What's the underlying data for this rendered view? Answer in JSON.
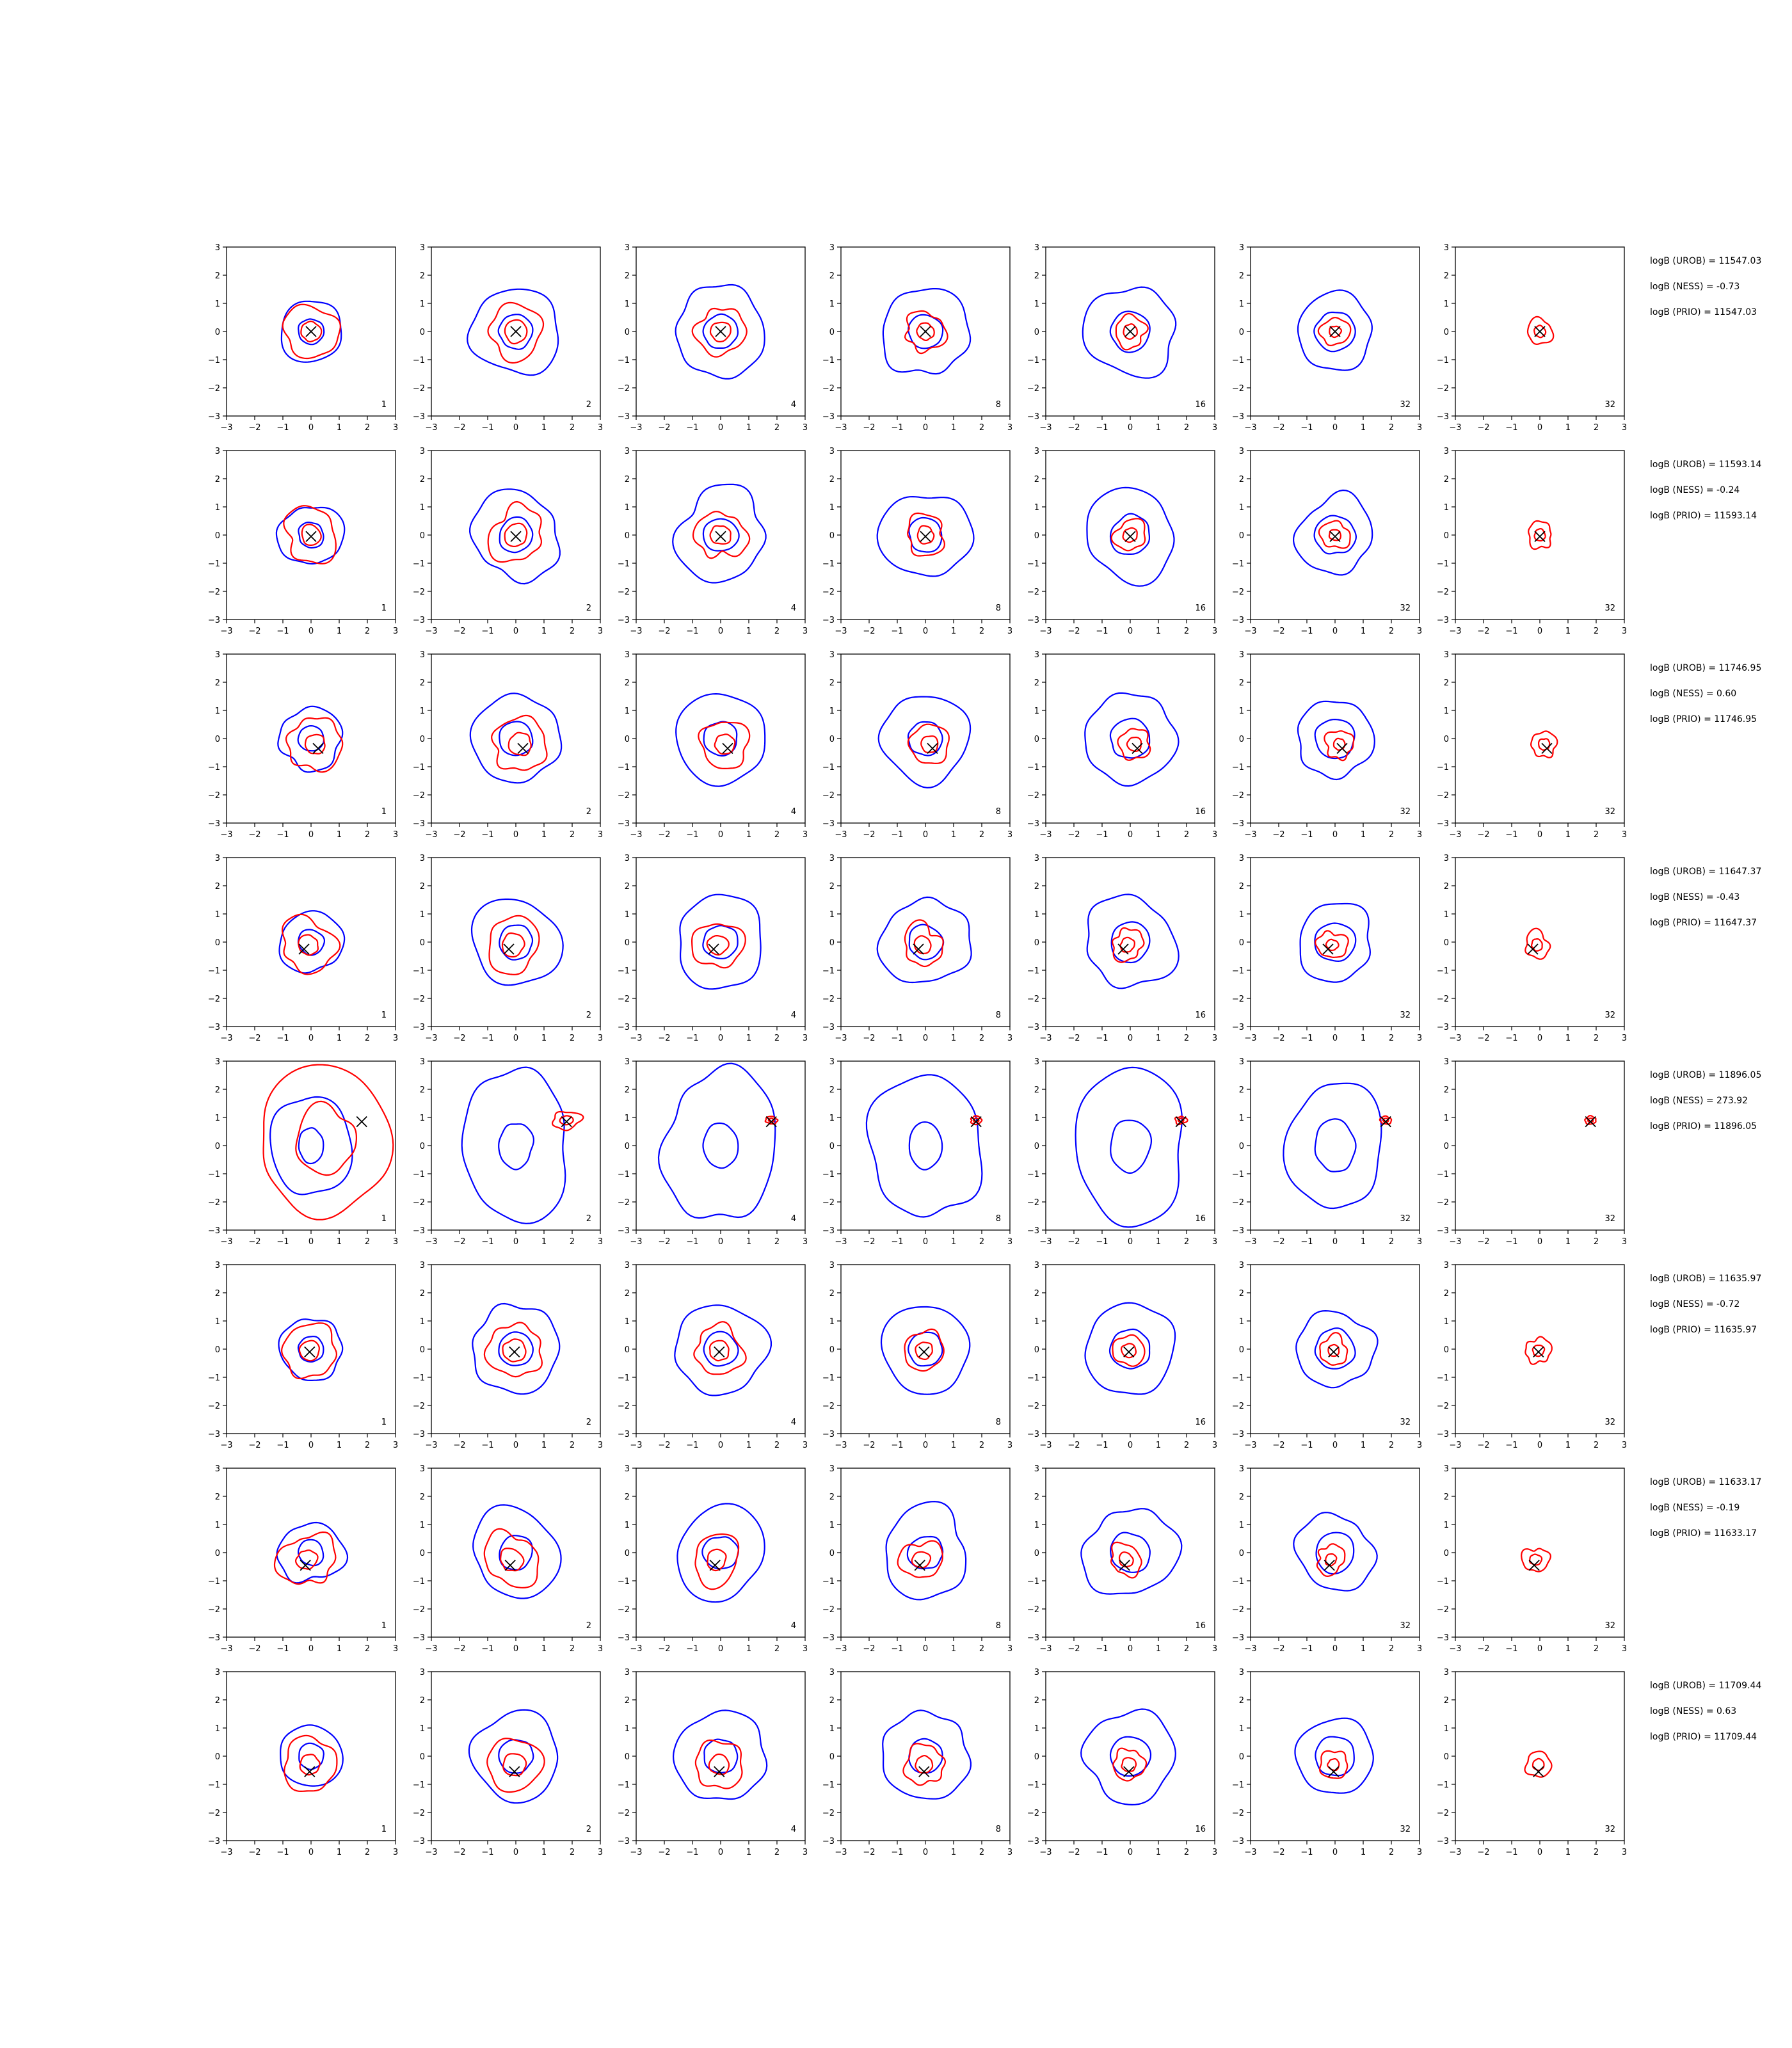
{
  "chart_data": {
    "type": "contour-grid",
    "rows": 8,
    "columns": 7,
    "xlim": [
      -3,
      3
    ],
    "ylim": [
      -3,
      3
    ],
    "xticks": [
      "−3",
      "−2",
      "−1",
      "0",
      "1",
      "2",
      "3"
    ],
    "yticks": [
      "3",
      "2",
      "1",
      "0",
      "−1",
      "−2",
      "−3"
    ],
    "panel_labels": [
      "1",
      "2",
      "4",
      "8",
      "16",
      "32",
      "32"
    ],
    "colors": {
      "blue_contour": "#0000ff",
      "red_contour": "#ff0000",
      "marker": "#000000"
    },
    "blue_levels": [
      [
        0.45,
        1.1
      ],
      [
        0.6,
        1.55
      ],
      [
        0.6,
        1.6
      ],
      [
        0.6,
        1.55
      ],
      [
        0.7,
        1.6
      ],
      [
        0.7,
        1.35
      ],
      null
    ],
    "red_levels": [
      [
        0.35,
        0.95
      ],
      [
        0.4,
        0.95
      ],
      [
        0.35,
        0.85
      ],
      [
        0.3,
        0.7
      ],
      [
        0.25,
        0.55
      ],
      [
        0.2,
        0.5
      ],
      [
        0.2,
        0.45
      ]
    ],
    "row_markers": [
      [
        0.0,
        0.0
      ],
      [
        0.0,
        -0.05
      ],
      [
        0.25,
        -0.35
      ],
      [
        -0.25,
        -0.25
      ],
      [
        1.8,
        0.85
      ],
      [
        -0.05,
        -0.1
      ],
      [
        -0.2,
        -0.45
      ],
      [
        -0.05,
        -0.55
      ]
    ],
    "row_red_center_shift": [
      [
        0.0,
        0.0
      ],
      [
        0.0,
        0.0
      ],
      [
        0.15,
        -0.2
      ],
      [
        -0.1,
        -0.1
      ],
      [
        1.8,
        0.9
      ],
      [
        -0.05,
        -0.05
      ],
      [
        -0.15,
        -0.25
      ],
      [
        -0.05,
        -0.3
      ]
    ],
    "row_notes": [
      [
        "logB (UROB) = 11547.03",
        "logB (NESS) = -0.73",
        "logB (PRIO) = 11547.03"
      ],
      [
        "logB (UROB) = 11593.14",
        "logB (NESS) = -0.24",
        "logB (PRIO) = 11593.14"
      ],
      [
        "logB (UROB) = 11746.95",
        "logB (NESS) = 0.60",
        "logB (PRIO) = 11746.95"
      ],
      [
        "logB (UROB) = 11647.37",
        "logB (NESS) = -0.43",
        "logB (PRIO) = 11647.37"
      ],
      [
        "logB (UROB) = 11896.05",
        "logB (NESS) = 273.92",
        "logB (PRIO) = 11896.05"
      ],
      [
        "logB (UROB) = 11635.97",
        "logB (NESS) = -0.72",
        "logB (PRIO) = 11635.97"
      ],
      [
        "logB (UROB) = 11633.17",
        "logB (NESS) = -0.19",
        "logB (PRIO) = 11633.17"
      ],
      [
        "logB (UROB) = 11709.44",
        "logB (NESS) = 0.63",
        "logB (PRIO) = 11709.44"
      ]
    ]
  }
}
